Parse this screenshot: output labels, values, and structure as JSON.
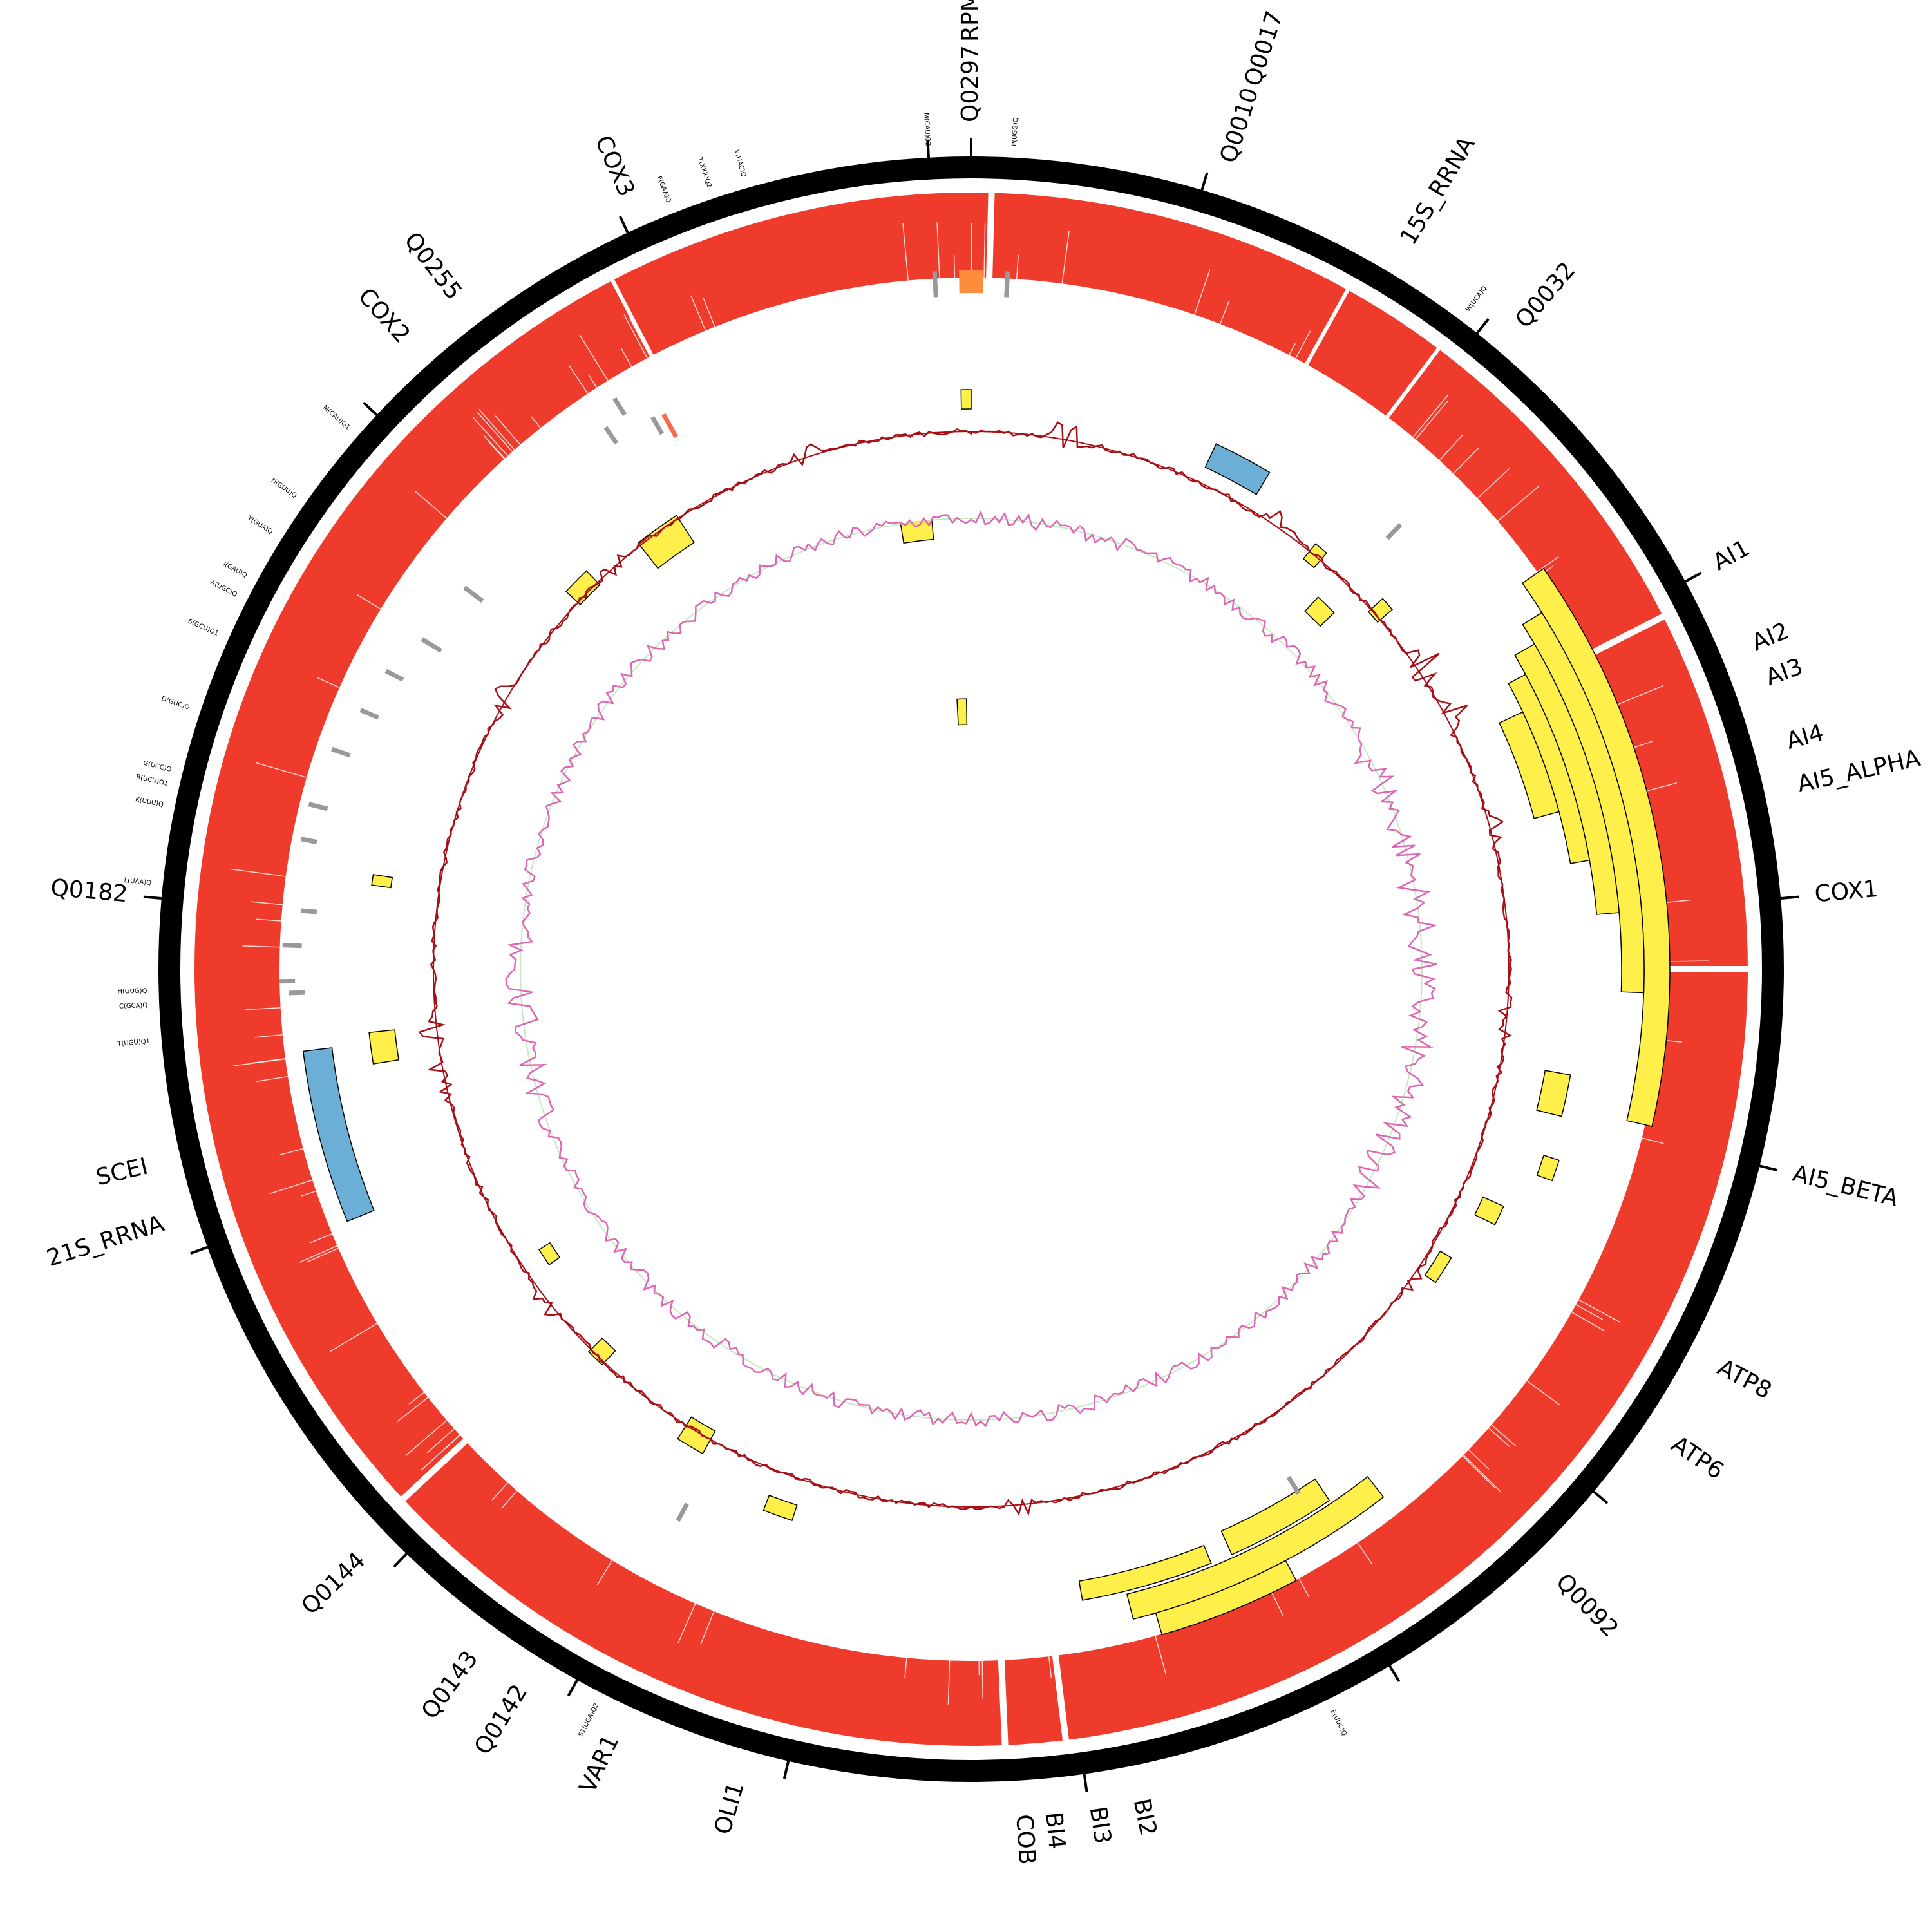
{
  "diagram": {
    "type": "circular genome map",
    "colors": {
      "backbone": "#000000",
      "coverage": "#ef3b2c",
      "gene_box": "#ffef4a",
      "rrna_box": "#6baed6",
      "trna_mark": "#999999",
      "orange_mark": "#fd8d3c",
      "red_mark": "#fb6a4a",
      "gc_skew": "#a50f15",
      "gc_content": "#de64b4",
      "gc_baseline": "#c7e9c0"
    },
    "gene_labels": [
      {
        "text": "Q0297",
        "angle": 0
      },
      {
        "text": "RPM1",
        "angle": 0
      },
      {
        "text": "Q0010",
        "angle": 17.7
      },
      {
        "text": "Q0017",
        "angle": 17.7
      },
      {
        "text": "15S_RRNA",
        "angle": 31
      },
      {
        "text": "Q0032",
        "angle": 40.5
      },
      {
        "text": "AI1",
        "angle": 61.5
      },
      {
        "text": "AI2",
        "angle": 67.5
      },
      {
        "text": "AI3",
        "angle": 70
      },
      {
        "text": "AI4",
        "angle": 74.5
      },
      {
        "text": "AI5_ALPHA",
        "angle": 77.5
      },
      {
        "text": "COX1",
        "angle": 85
      },
      {
        "text": "AI5_BETA",
        "angle": 104
      },
      {
        "text": "ATP8",
        "angle": 118
      },
      {
        "text": "ATP6",
        "angle": 124
      },
      {
        "text": "Q0092",
        "angle": 136
      },
      {
        "text": "BI2",
        "angle": 168.5
      },
      {
        "text": "BI3",
        "angle": 171.5
      },
      {
        "text": "BI4",
        "angle": 174.5
      },
      {
        "text": "COB",
        "angle": 176.5
      },
      {
        "text": "OLI1",
        "angle": 196
      },
      {
        "text": "VAR1",
        "angle": 205
      },
      {
        "text": "Q0142",
        "angle": 212
      },
      {
        "text": "Q0143",
        "angle": 216
      },
      {
        "text": "Q0144",
        "angle": 226
      },
      {
        "text": "21S_RRNA",
        "angle": 252.5
      },
      {
        "text": "SCEI",
        "angle": 256.5
      },
      {
        "text": "Q0182",
        "angle": 275
      },
      {
        "text": "COX2",
        "angle": 318
      },
      {
        "text": "Q0255",
        "angle": 322.5
      },
      {
        "text": "COX3",
        "angle": 336
      }
    ],
    "trna_labels": [
      {
        "text": "M(CAU)Q2",
        "angle": 357
      },
      {
        "text": "P(UGG)Q",
        "angle": 3
      },
      {
        "text": "W(UCA)Q",
        "angle": 37
      },
      {
        "text": "E(UUC)Q",
        "angle": 154
      },
      {
        "text": "S1(UGA)Q2",
        "angle": 207
      },
      {
        "text": "T(UGU)Q1",
        "angle": 265
      },
      {
        "text": "C(GCA)Q",
        "angle": 267.5
      },
      {
        "text": "H(GUG)Q",
        "angle": 268.5
      },
      {
        "text": "L(UAA)Q",
        "angle": 276
      },
      {
        "text": "K(UUU)Q",
        "angle": 281.5
      },
      {
        "text": "R(UCU)Q1",
        "angle": 283
      },
      {
        "text": "G(UCC)Q",
        "angle": 284
      },
      {
        "text": "D(GUC)Q",
        "angle": 288.5
      },
      {
        "text": "S(GCU)Q1",
        "angle": 294
      },
      {
        "text": "A(UGC)Q",
        "angle": 297
      },
      {
        "text": "I(GAU)Q",
        "angle": 298.5
      },
      {
        "text": "Y(GUA)Q",
        "angle": 302
      },
      {
        "text": "N(GUU)Q",
        "angle": 305
      },
      {
        "text": "M(CAU)Q1",
        "angle": 311
      },
      {
        "text": "F(GAA)Q",
        "angle": 338.5
      },
      {
        "text": "T(XXX)Q2",
        "angle": 341.5
      },
      {
        "text": "V(UAC)Q",
        "angle": 344
      }
    ],
    "outer_ticks": [
      0,
      357,
      16.5,
      38.5,
      61.5,
      85,
      104,
      130,
      149,
      172,
      193,
      209,
      224,
      250,
      275,
      313,
      335
    ],
    "coverage_gaps": [
      -27.5,
      29,
      37,
      1.5,
      63,
      90,
      173,
      177.5,
      227
    ]
  }
}
